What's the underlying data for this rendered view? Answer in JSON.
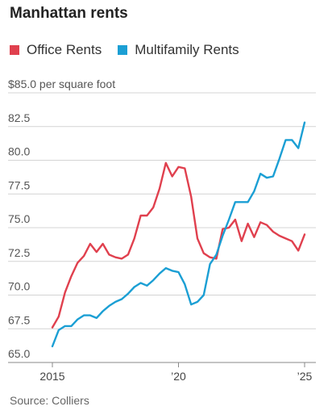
{
  "chart_data": {
    "type": "line",
    "title": "Manhattan rents",
    "ylabel": "",
    "y_first_tick_label": "$85.0 per square foot",
    "y_tick_labels": [
      "82.5",
      "80.0",
      "77.5",
      "75.0",
      "72.5",
      "70.0",
      "67.5",
      "65.0"
    ],
    "y_tick_values": [
      82.5,
      80,
      77.5,
      75,
      72.5,
      70,
      67.5,
      65
    ],
    "ylim": [
      65,
      85
    ],
    "xlim": [
      2015,
      2025
    ],
    "x_tick_values": [
      2015,
      2020,
      2025
    ],
    "x_tick_labels": [
      "2015",
      "’20",
      "’25"
    ],
    "grid": true,
    "legend_placement": "top",
    "source": "Source: Colliers",
    "series": [
      {
        "name": "Office Rents",
        "color": "#e0404e",
        "points": [
          [
            2015.0,
            67.6
          ],
          [
            2015.25,
            68.4
          ],
          [
            2015.5,
            70.2
          ],
          [
            2015.75,
            71.4
          ],
          [
            2016.0,
            72.4
          ],
          [
            2016.25,
            72.9
          ],
          [
            2016.5,
            73.8
          ],
          [
            2016.75,
            73.2
          ],
          [
            2017.0,
            73.8
          ],
          [
            2017.25,
            73.0
          ],
          [
            2017.5,
            72.8
          ],
          [
            2017.75,
            72.7
          ],
          [
            2018.0,
            73.0
          ],
          [
            2018.25,
            74.2
          ],
          [
            2018.5,
            75.9
          ],
          [
            2018.75,
            75.9
          ],
          [
            2019.0,
            76.5
          ],
          [
            2019.25,
            77.9
          ],
          [
            2019.5,
            79.8
          ],
          [
            2019.75,
            78.8
          ],
          [
            2020.0,
            79.5
          ],
          [
            2020.25,
            79.4
          ],
          [
            2020.5,
            77.3
          ],
          [
            2020.75,
            74.2
          ],
          [
            2021.0,
            73.1
          ],
          [
            2021.25,
            72.8
          ],
          [
            2021.5,
            72.7
          ],
          [
            2021.75,
            74.9
          ],
          [
            2022.0,
            75.0
          ],
          [
            2022.25,
            75.6
          ],
          [
            2022.5,
            74.0
          ],
          [
            2022.75,
            75.3
          ],
          [
            2023.0,
            74.3
          ],
          [
            2023.25,
            75.4
          ],
          [
            2023.5,
            75.2
          ],
          [
            2023.75,
            74.7
          ],
          [
            2024.0,
            74.4
          ],
          [
            2024.25,
            74.2
          ],
          [
            2024.5,
            74.0
          ],
          [
            2024.75,
            73.3
          ],
          [
            2025.0,
            74.5
          ]
        ]
      },
      {
        "name": "Multifamily Rents",
        "color": "#1b9fd4",
        "points": [
          [
            2015.0,
            66.2
          ],
          [
            2015.25,
            67.4
          ],
          [
            2015.5,
            67.7
          ],
          [
            2015.75,
            67.7
          ],
          [
            2016.0,
            68.2
          ],
          [
            2016.25,
            68.5
          ],
          [
            2016.5,
            68.5
          ],
          [
            2016.75,
            68.3
          ],
          [
            2017.0,
            68.8
          ],
          [
            2017.25,
            69.2
          ],
          [
            2017.5,
            69.5
          ],
          [
            2017.75,
            69.7
          ],
          [
            2018.0,
            70.1
          ],
          [
            2018.25,
            70.6
          ],
          [
            2018.5,
            70.9
          ],
          [
            2018.75,
            70.7
          ],
          [
            2019.0,
            71.1
          ],
          [
            2019.25,
            71.6
          ],
          [
            2019.5,
            72.0
          ],
          [
            2019.75,
            71.8
          ],
          [
            2020.0,
            71.7
          ],
          [
            2020.25,
            70.8
          ],
          [
            2020.5,
            69.3
          ],
          [
            2020.75,
            69.5
          ],
          [
            2021.0,
            70.0
          ],
          [
            2021.25,
            72.3
          ],
          [
            2021.5,
            73.0
          ],
          [
            2021.75,
            74.4
          ],
          [
            2022.0,
            75.6
          ],
          [
            2022.25,
            76.9
          ],
          [
            2022.5,
            76.9
          ],
          [
            2022.75,
            76.9
          ],
          [
            2023.0,
            77.7
          ],
          [
            2023.25,
            79.0
          ],
          [
            2023.5,
            78.7
          ],
          [
            2023.75,
            78.8
          ],
          [
            2024.0,
            80.1
          ],
          [
            2024.25,
            81.5
          ],
          [
            2024.5,
            81.5
          ],
          [
            2024.75,
            80.9
          ],
          [
            2025.0,
            82.8
          ]
        ]
      }
    ]
  }
}
